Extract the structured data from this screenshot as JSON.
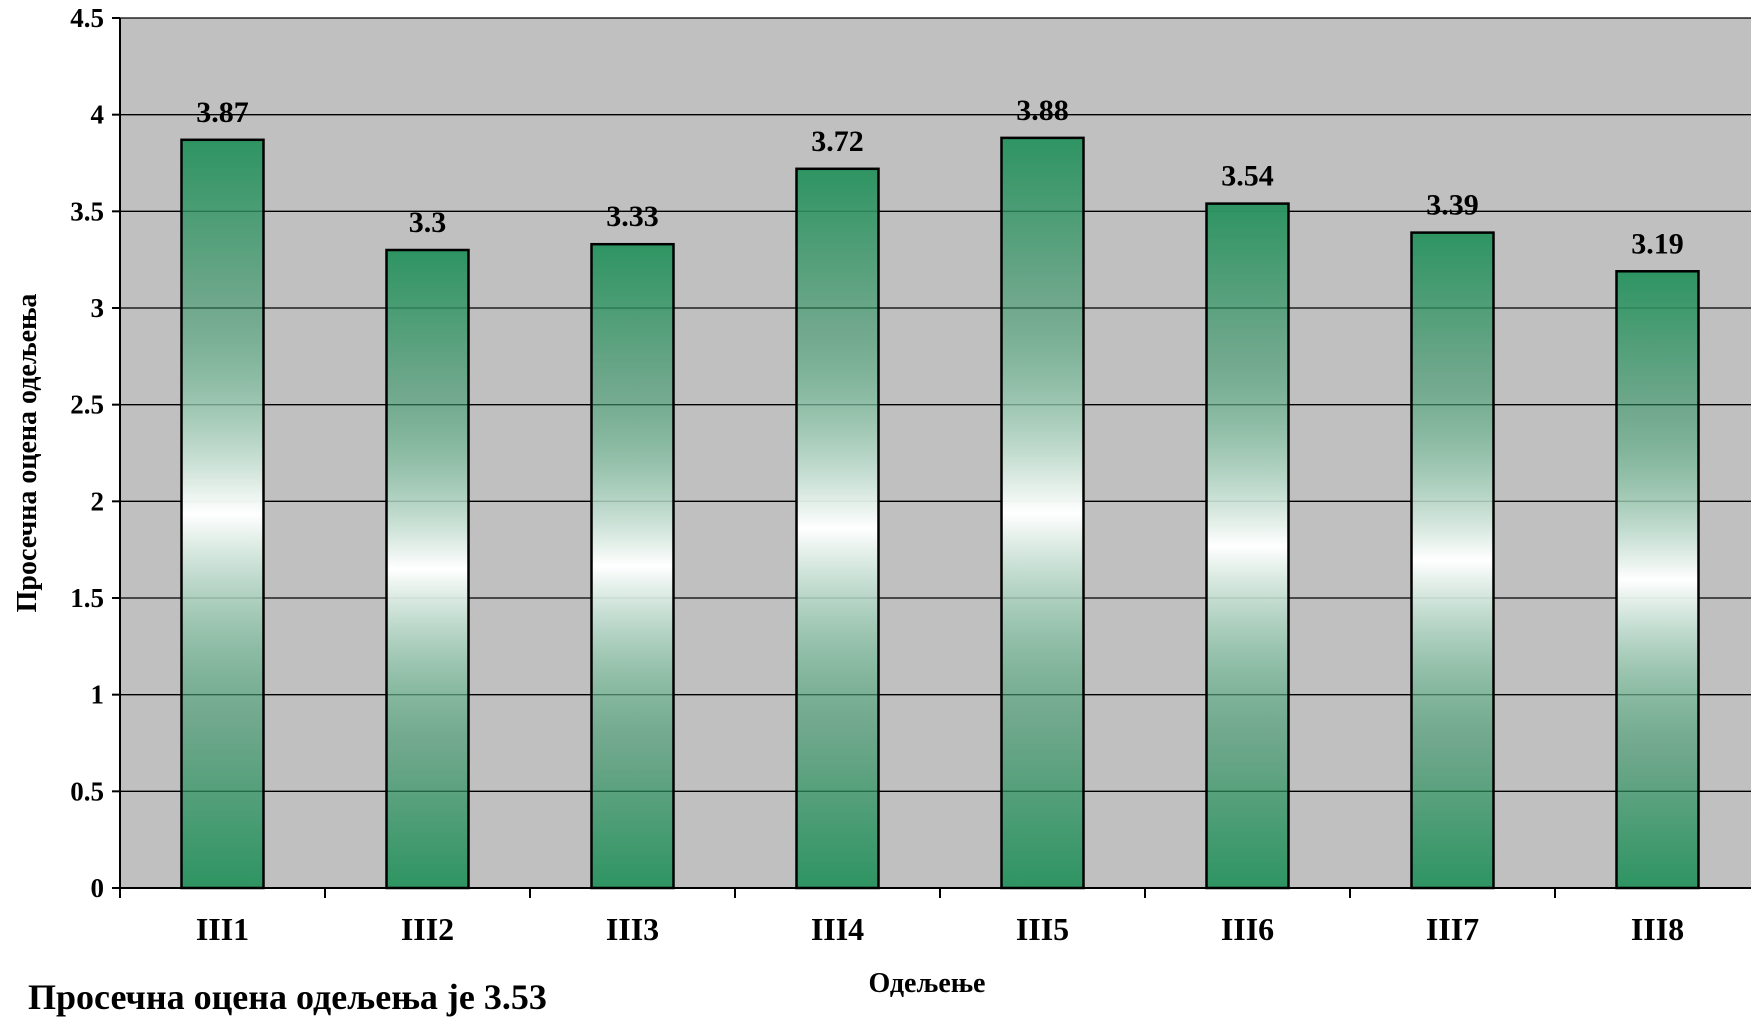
{
  "chart_data": {
    "type": "bar",
    "categories": [
      "III1",
      "III2",
      "III3",
      "III4",
      "III5",
      "III6",
      "III7",
      "III8"
    ],
    "values": [
      3.87,
      3.3,
      3.33,
      3.72,
      3.88,
      3.54,
      3.39,
      3.19
    ],
    "data_labels": [
      "3.87",
      "3.3",
      "3.33",
      "3.72",
      "3.88",
      "3.54",
      "3.39",
      "3.19"
    ],
    "xlabel": "Одељење",
    "ylabel": "Просечна оцена одељења",
    "ylim": [
      0,
      4.5
    ],
    "yticks": [
      "0",
      "0.5",
      "1",
      "1.5",
      "2",
      "2.5",
      "3",
      "3.5",
      "4",
      "4.5"
    ],
    "grid": true,
    "legend": "none"
  },
  "colors": {
    "plot_background": "#c0c0c0",
    "bar_fill": "#2e9462",
    "bar_highlight": "#ffffff",
    "grid": "#000000"
  },
  "footer": {
    "text": "Просечна оцена одељења је 3.53"
  }
}
